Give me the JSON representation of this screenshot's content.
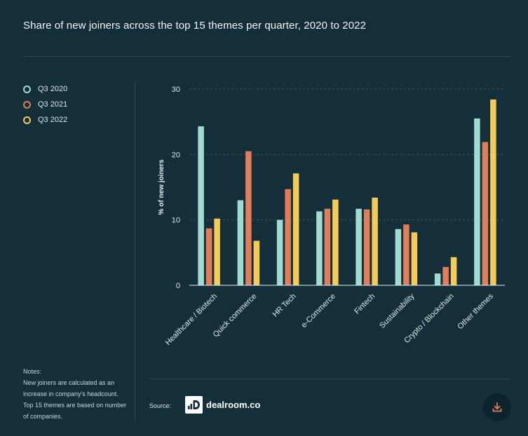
{
  "header": {
    "title": "Share of new joiners across the top 15 themes per quarter, 2020 to 2022"
  },
  "legend": [
    {
      "label": "Q3 2020",
      "color": "#9fdccf"
    },
    {
      "label": "Q3 2021",
      "color": "#e27d5b"
    },
    {
      "label": "Q3 2022",
      "color": "#f4cb58"
    }
  ],
  "notes": {
    "heading": "Notes:",
    "text": "New joiners are calculated as an increase in company's headcount. Top 15 themes are based on number of companies."
  },
  "footer": {
    "source_label": "Source:",
    "logo_text": "dealroom.co",
    "download_icon": "download-icon"
  },
  "chart_data": {
    "type": "bar",
    "ylabel": "% of new joiners",
    "ylim": [
      0,
      30
    ],
    "yticks": [
      0,
      10,
      20,
      30
    ],
    "grid": true,
    "legend_position": "left",
    "categories": [
      "Healthcare / Biotech",
      "Quick commerce",
      "HR Tech",
      "e-Commerce",
      "Fintech",
      "Sustainability",
      "Crypto / Blockchain",
      "Other themes"
    ],
    "series": [
      {
        "name": "Q3 2020",
        "color": "#9fdccf",
        "values": [
          24.3,
          13.0,
          10.0,
          11.3,
          11.7,
          8.6,
          1.8,
          25.5
        ]
      },
      {
        "name": "Q3 2021",
        "color": "#e27d5b",
        "values": [
          8.7,
          20.5,
          14.7,
          11.7,
          11.6,
          9.3,
          2.8,
          21.9
        ]
      },
      {
        "name": "Q3 2022",
        "color": "#f4cb58",
        "values": [
          10.2,
          6.8,
          17.1,
          13.1,
          13.4,
          8.1,
          4.3,
          28.4
        ]
      }
    ]
  }
}
